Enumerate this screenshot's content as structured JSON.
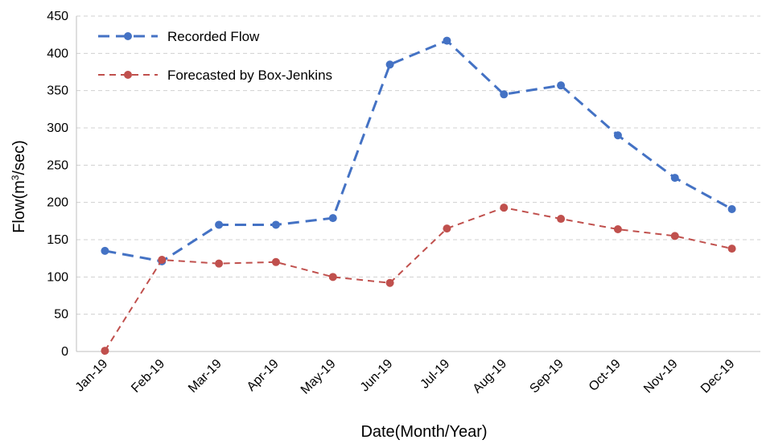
{
  "chart_data": {
    "type": "line",
    "title": "",
    "xlabel": "Date(Month/Year)",
    "ylabel_prefix": "Flow(m",
    "ylabel_sup": "3",
    "ylabel_suffix": "/sec)",
    "ylim": [
      0,
      450
    ],
    "yticks": [
      0,
      50,
      100,
      150,
      200,
      250,
      300,
      350,
      400,
      450
    ],
    "grid": true,
    "legend_position": "top-left",
    "categories": [
      "Jan-19",
      "Feb-19",
      "Mar-19",
      "Apr-19",
      "May-19",
      "Jun-19",
      "Jul-19",
      "Aug-19",
      "Sep-19",
      "Oct-19",
      "Nov-19",
      "Dec-19"
    ],
    "series": [
      {
        "name": "Recorded Flow",
        "color": "#4472C4",
        "line_style": "long-dash",
        "values": [
          135,
          121,
          170,
          170,
          179,
          385,
          417,
          345,
          357,
          290,
          233,
          191
        ]
      },
      {
        "name": "Forecasted by Box-Jenkins",
        "color": "#C0504D",
        "line_style": "short-dash",
        "values": [
          1,
          123,
          118,
          120,
          100,
          92,
          165,
          193,
          178,
          164,
          155,
          138
        ]
      }
    ]
  }
}
